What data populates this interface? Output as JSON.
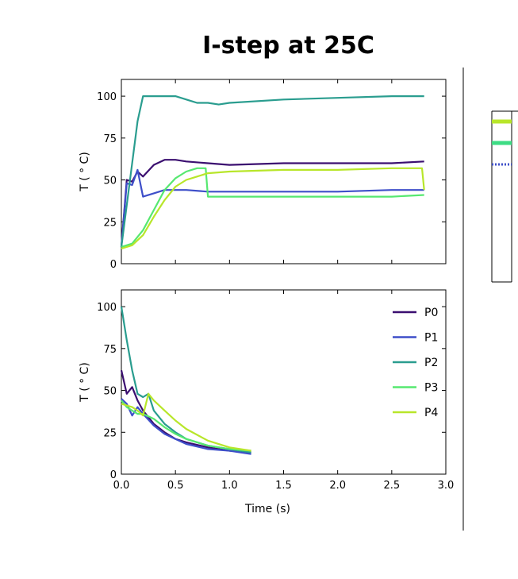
{
  "title": "I-step at 25C",
  "chart_data": [
    {
      "type": "line",
      "xlim": [
        0,
        3.0
      ],
      "ylim": [
        0,
        110
      ],
      "ylabel": "T ( ° C)",
      "yticks": [
        "0",
        "25",
        "50",
        "75",
        "100"
      ],
      "grid": false,
      "series": [
        {
          "name": "P0",
          "color": "#3b0f70",
          "x": [
            0.0,
            0.05,
            0.1,
            0.15,
            0.2,
            0.3,
            0.4,
            0.5,
            0.6,
            0.8,
            1.0,
            1.5,
            2.0,
            2.5,
            2.8
          ],
          "y": [
            10,
            50,
            49,
            55,
            52,
            59,
            62,
            62,
            61,
            60,
            59,
            60,
            60,
            60,
            61
          ]
        },
        {
          "name": "P1",
          "color": "#3e4fc9",
          "x": [
            0.0,
            0.05,
            0.1,
            0.15,
            0.2,
            0.3,
            0.4,
            0.5,
            0.6,
            0.8,
            1.0,
            1.5,
            2.0,
            2.5,
            2.8
          ],
          "y": [
            10,
            48,
            47,
            56,
            40,
            42,
            44,
            44,
            44,
            43,
            43,
            43,
            43,
            44,
            44
          ]
        },
        {
          "name": "P2",
          "color": "#2a9d8f",
          "x": [
            0.0,
            0.1,
            0.15,
            0.2,
            0.3,
            0.5,
            0.7,
            0.8,
            0.9,
            1.0,
            1.5,
            2.0,
            2.5,
            2.8
          ],
          "y": [
            10,
            60,
            85,
            100,
            100,
            100,
            96,
            96,
            95,
            96,
            98,
            99,
            100,
            100
          ]
        },
        {
          "name": "P3",
          "color": "#56e870",
          "x": [
            0.0,
            0.1,
            0.2,
            0.3,
            0.4,
            0.5,
            0.6,
            0.7,
            0.78,
            0.8,
            1.0,
            1.5,
            2.0,
            2.5,
            2.8
          ],
          "y": [
            10,
            12,
            20,
            32,
            44,
            51,
            55,
            57,
            57,
            40,
            40,
            40,
            40,
            40,
            41
          ]
        },
        {
          "name": "P4",
          "color": "#b8e62a",
          "x": [
            0.0,
            0.1,
            0.2,
            0.3,
            0.4,
            0.5,
            0.6,
            0.7,
            0.8,
            1.0,
            1.5,
            2.0,
            2.5,
            2.78,
            2.8
          ],
          "y": [
            9,
            11,
            17,
            28,
            38,
            46,
            50,
            52,
            54,
            55,
            56,
            56,
            57,
            57,
            44
          ]
        }
      ]
    },
    {
      "type": "line",
      "xlim": [
        0,
        3.0
      ],
      "ylim": [
        0,
        110
      ],
      "xlabel": "Time (s)",
      "ylabel": "T ( ° C)",
      "xticks": [
        "0.0",
        "0.5",
        "1.0",
        "1.5",
        "2.0",
        "2.5",
        "3.0"
      ],
      "yticks": [
        "0",
        "25",
        "50",
        "75",
        "100"
      ],
      "legend": "top-right",
      "grid": false,
      "series": [
        {
          "name": "P0",
          "color": "#3b0f70",
          "x": [
            0.0,
            0.05,
            0.1,
            0.15,
            0.2,
            0.3,
            0.4,
            0.5,
            0.6,
            0.8,
            1.0,
            1.2
          ],
          "y": [
            62,
            48,
            52,
            44,
            38,
            30,
            25,
            21,
            19,
            16,
            14,
            13
          ]
        },
        {
          "name": "P1",
          "color": "#3e4fc9",
          "x": [
            0.0,
            0.05,
            0.1,
            0.15,
            0.2,
            0.3,
            0.4,
            0.5,
            0.6,
            0.8,
            1.0,
            1.2
          ],
          "y": [
            45,
            42,
            35,
            40,
            36,
            29,
            24,
            21,
            18,
            15,
            14,
            12
          ]
        },
        {
          "name": "P2",
          "color": "#2a9d8f",
          "x": [
            0.0,
            0.05,
            0.1,
            0.15,
            0.2,
            0.25,
            0.3,
            0.4,
            0.5,
            0.6,
            0.8,
            1.0,
            1.2
          ],
          "y": [
            100,
            80,
            62,
            48,
            46,
            48,
            38,
            30,
            25,
            21,
            17,
            15,
            13
          ]
        },
        {
          "name": "P3",
          "color": "#56e870",
          "x": [
            0.0,
            0.05,
            0.1,
            0.15,
            0.2,
            0.3,
            0.4,
            0.5,
            0.6,
            0.8,
            1.0,
            1.2
          ],
          "y": [
            44,
            40,
            38,
            36,
            36,
            33,
            28,
            24,
            21,
            17,
            15,
            14
          ]
        },
        {
          "name": "P4",
          "color": "#b8e62a",
          "x": [
            0.0,
            0.05,
            0.1,
            0.15,
            0.2,
            0.25,
            0.3,
            0.4,
            0.5,
            0.6,
            0.8,
            1.0,
            1.2
          ],
          "y": [
            42,
            41,
            40,
            38,
            35,
            48,
            44,
            38,
            32,
            27,
            20,
            16,
            14
          ]
        }
      ]
    }
  ]
}
